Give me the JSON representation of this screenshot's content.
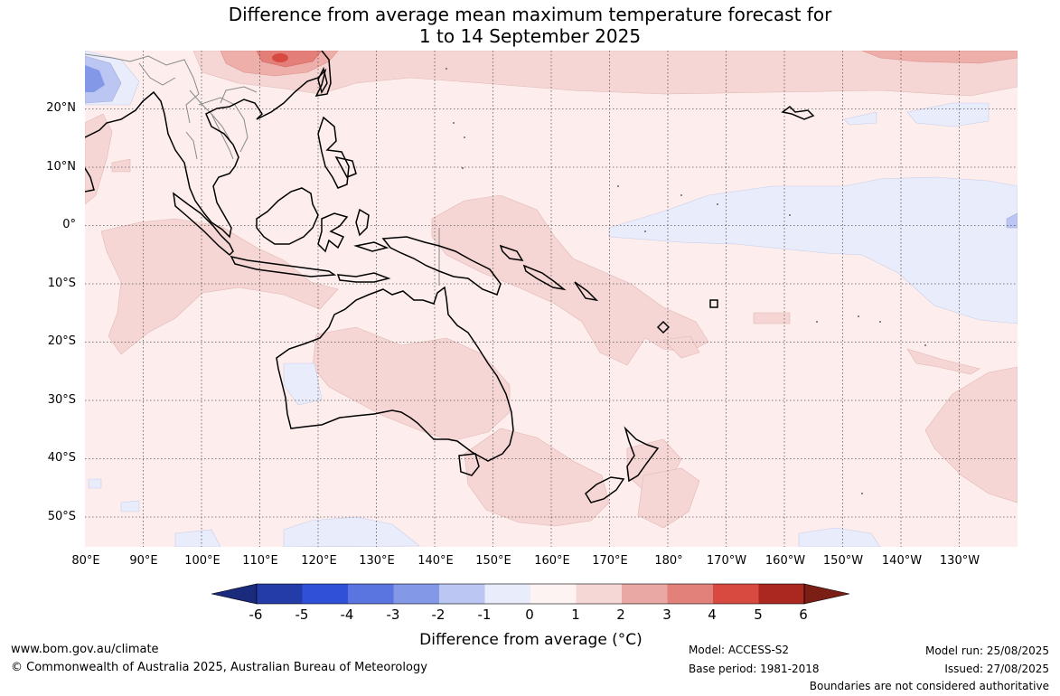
{
  "title": {
    "line1": "Difference from average mean maximum temperature forecast for",
    "line2": "1 to 14 September 2025"
  },
  "lat_labels": [
    "20°N",
    "10°N",
    "0°",
    "10°S",
    "20°S",
    "30°S",
    "40°S",
    "50°S"
  ],
  "lon_labels": [
    "80°E",
    "90°E",
    "100°E",
    "110°E",
    "120°E",
    "130°E",
    "140°E",
    "150°E",
    "160°E",
    "170°E",
    "180°",
    "170°W",
    "160°W",
    "150°W",
    "140°W",
    "130°W"
  ],
  "colorbar": {
    "ticks": [
      "-6",
      "-5",
      "-4",
      "-3",
      "-2",
      "-1",
      "0",
      "1",
      "2",
      "3",
      "4",
      "5",
      "6"
    ],
    "colors": [
      "#243ca8",
      "#3050d8",
      "#5a74e0",
      "#8498e8",
      "#bcc6f2",
      "#e8ecfb",
      "#fdf3f2",
      "#f5d8d6",
      "#eaa8a4",
      "#e2807a",
      "#d84a40",
      "#aa2820"
    ],
    "under_color": "#1a2a7c",
    "over_color": "#7a1e16",
    "title": "Difference from average (°C)"
  },
  "footer": {
    "website": "www.bom.gov.au/climate",
    "copyright": "© Commonwealth of Australia 2025, Australian Bureau of Meteorology",
    "model": "Model: ACCESS-S2",
    "base_period": "Base period: 1981-2018",
    "model_run": "Model run: 25/08/2025",
    "issued": "Issued: 27/08/2025",
    "disclaimer": "Boundaries are not considered authoritative"
  }
}
